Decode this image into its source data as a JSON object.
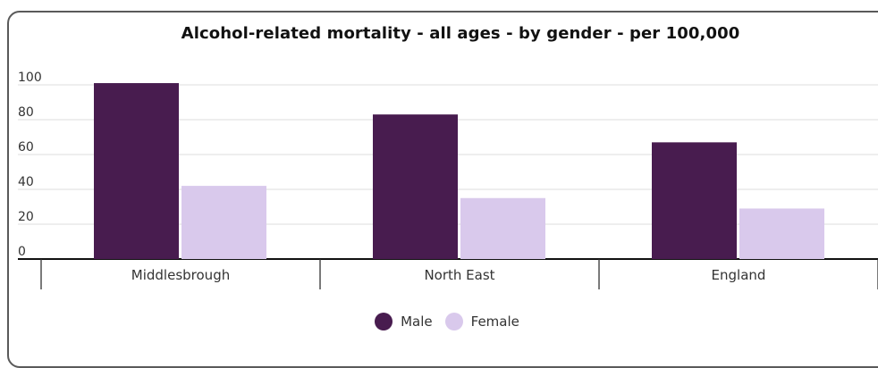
{
  "chart_data": {
    "type": "bar",
    "title": "Alcohol-related mortality - all ages - by gender - per 100,000",
    "categories": [
      "Middlesbrough",
      "North East",
      "England"
    ],
    "series": [
      {
        "name": "Male",
        "values": [
          101,
          83,
          67
        ],
        "color": "#481c4f"
      },
      {
        "name": "Female",
        "values": [
          42,
          35,
          29
        ],
        "color": "#d9c9ec"
      }
    ],
    "y_ticks": [
      "0",
      "20",
      "40",
      "60",
      "80",
      "100"
    ],
    "ylim": [
      0,
      100
    ],
    "grid": true,
    "legend_position": "bottom"
  }
}
